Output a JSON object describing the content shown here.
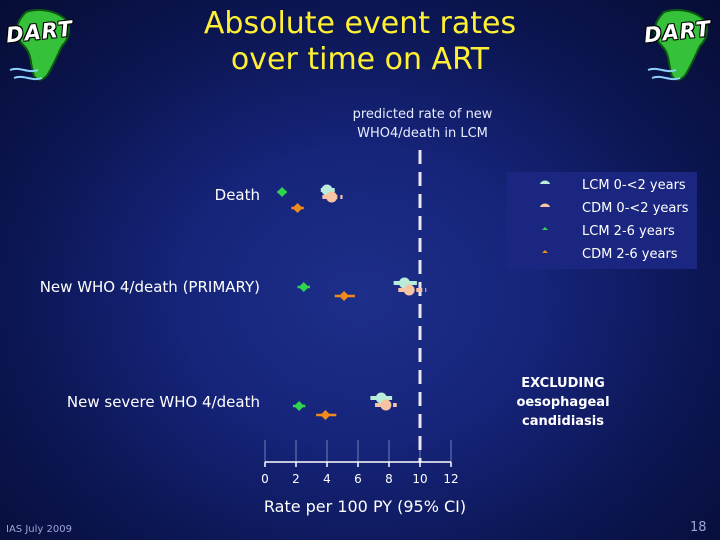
{
  "title_line1": "Absolute event rates",
  "title_line2": "over time on ART",
  "logo_text": "DART",
  "reference_label_line1": "predicted rate of new",
  "reference_label_line2": "WHO4/death in LCM",
  "annotation_line1": "EXCLUDING",
  "annotation_line2": "oesophageal",
  "annotation_line3": "candidiasis",
  "footer": "IAS July 2009",
  "page_number": "18",
  "colors": {
    "title": "#fff033",
    "lcm_early": "#b9ecd9",
    "cdm_early": "#f7c3a3",
    "lcm_late": "#2fd44f",
    "cdm_late": "#f08a1a",
    "reference_line": "#e8e8f0"
  },
  "chart_data": {
    "type": "scatter",
    "subtype": "forest plot",
    "xlabel": "Rate per 100 PY (95% CI)",
    "xlim": [
      0,
      12
    ],
    "xticks": [
      0,
      2,
      4,
      6,
      8,
      10,
      12
    ],
    "categories": [
      "Death",
      "New WHO 4/death (PRIMARY)",
      "New severe WHO 4/death"
    ],
    "reference_value": 10,
    "legend_position": "top-right",
    "series": [
      {
        "name": "LCM 0-<2 years",
        "color": "#b9ecd9",
        "marker": "circle",
        "line": "solid",
        "values": [
          4.0,
          9.0,
          7.5
        ],
        "ci_low": [
          3.6,
          8.3,
          6.8
        ],
        "ci_high": [
          4.5,
          9.8,
          8.2
        ]
      },
      {
        "name": "CDM 0-<2 years",
        "color": "#f7c3a3",
        "marker": "circle",
        "line": "dashed",
        "values": [
          4.3,
          9.3,
          7.8
        ],
        "ci_low": [
          3.7,
          8.6,
          7.1
        ],
        "ci_high": [
          5.0,
          10.4,
          8.5
        ]
      },
      {
        "name": "LCM 2-6 years",
        "color": "#2fd44f",
        "marker": "diamond",
        "line": "solid",
        "values": [
          1.1,
          2.5,
          2.2
        ],
        "ci_low": [
          0.8,
          2.1,
          1.8
        ],
        "ci_high": [
          1.4,
          2.9,
          2.6
        ]
      },
      {
        "name": "CDM 2-6 years",
        "color": "#f08a1a",
        "marker": "diamond",
        "line": "solid",
        "values": [
          2.1,
          5.1,
          3.9
        ],
        "ci_low": [
          1.7,
          4.5,
          3.3
        ],
        "ci_high": [
          2.5,
          5.8,
          4.6
        ]
      }
    ]
  }
}
